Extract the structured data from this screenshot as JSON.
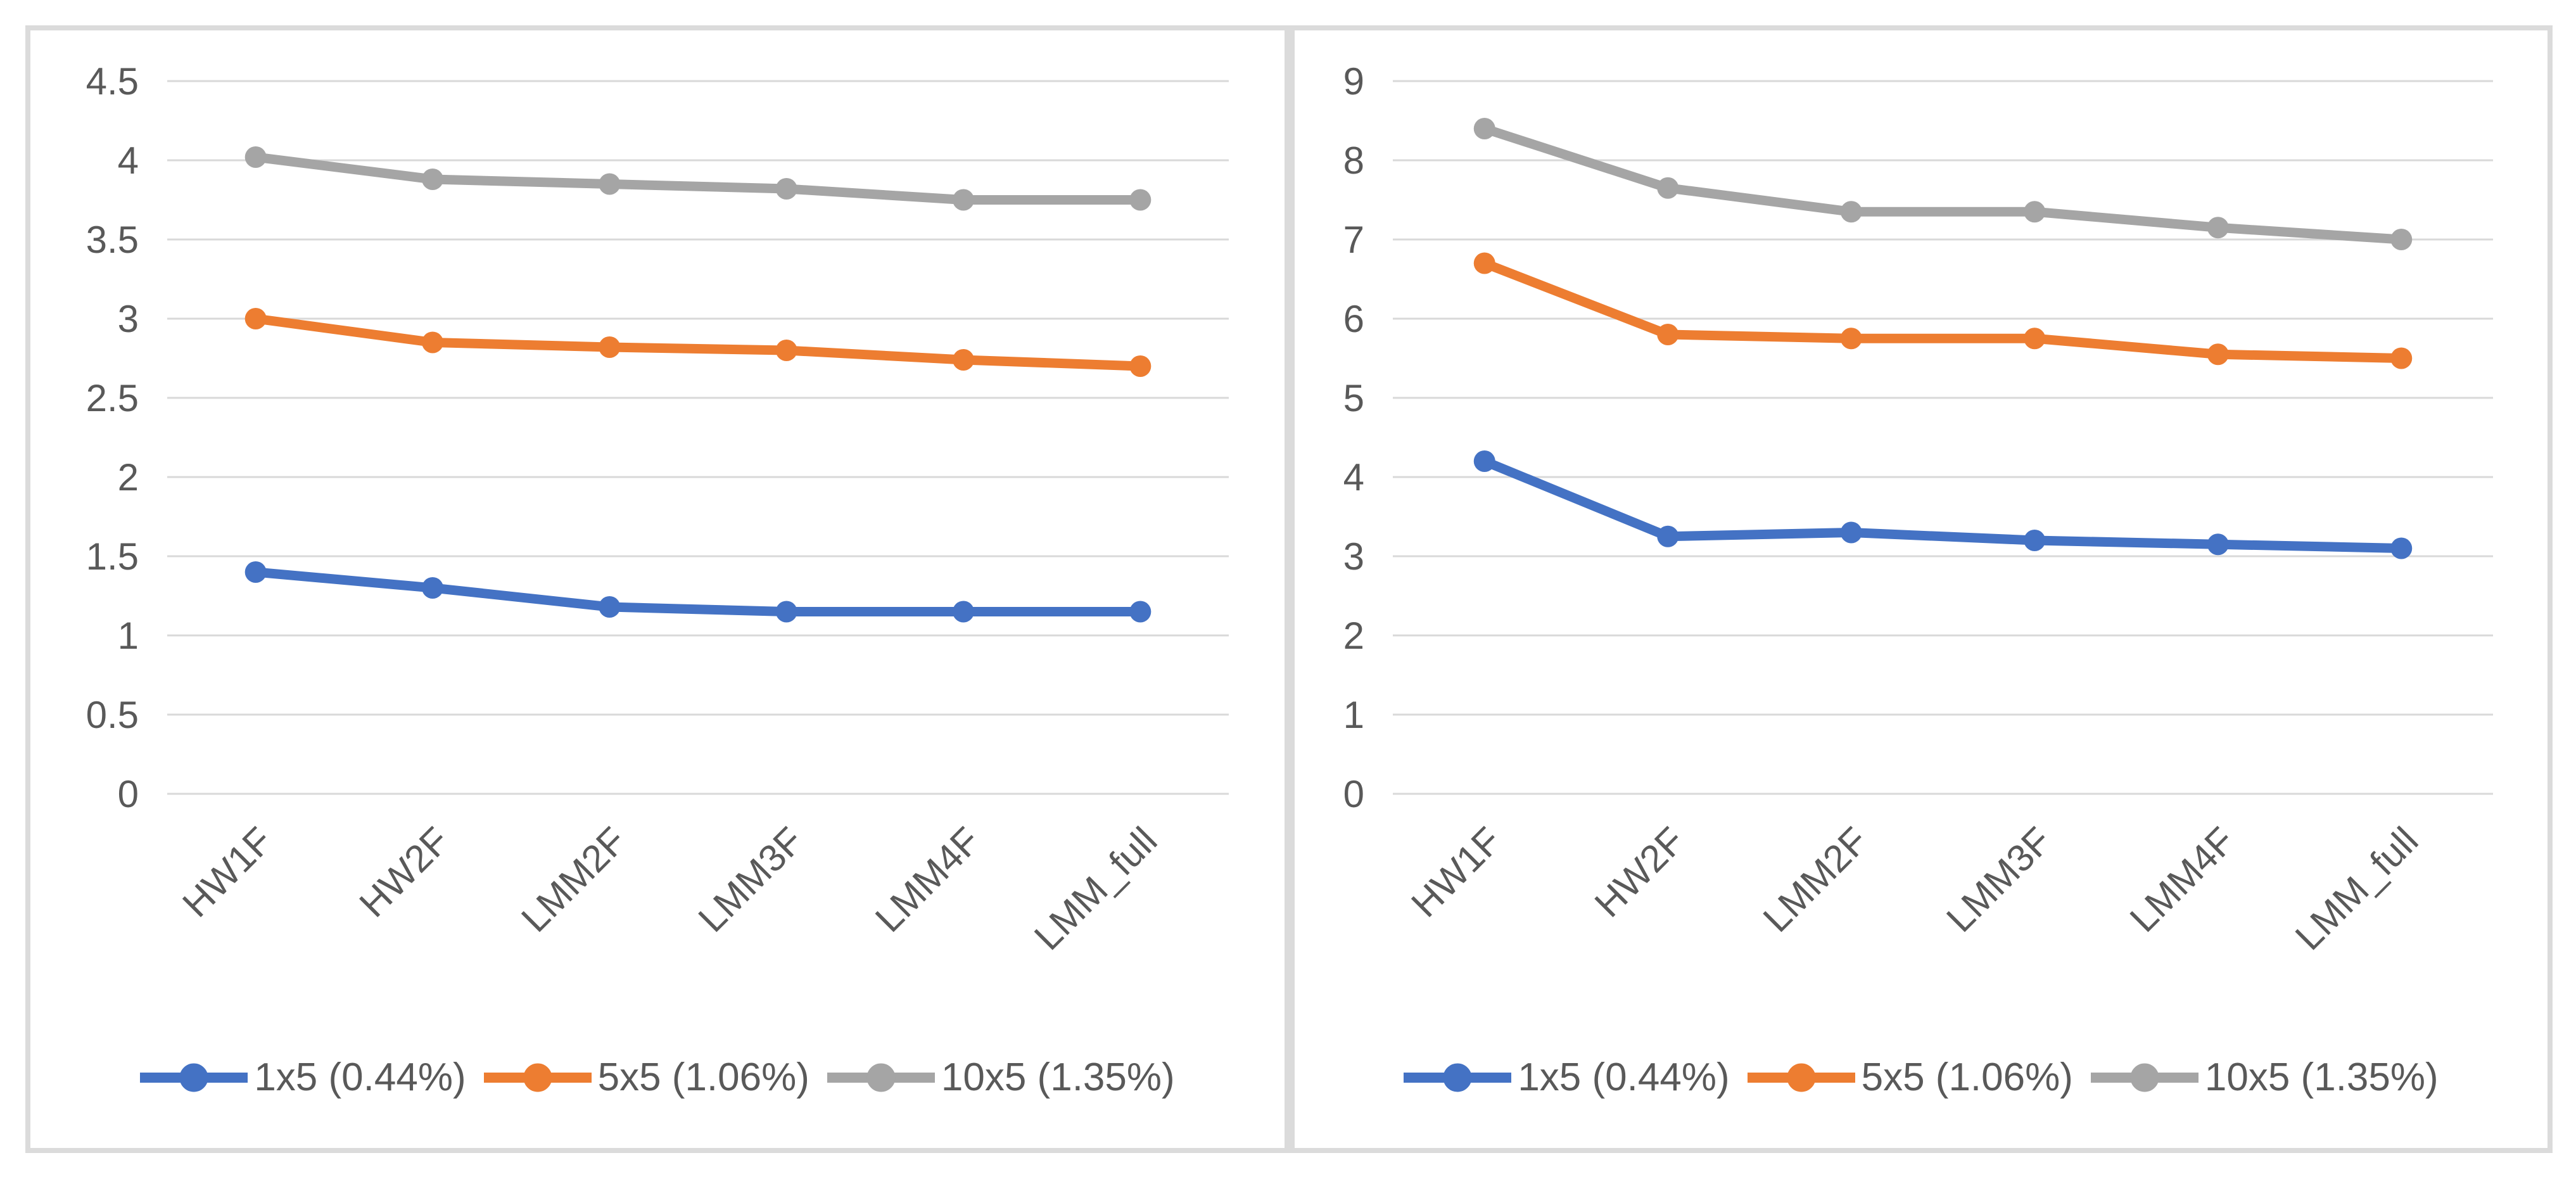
{
  "colors": {
    "series_blue": "#4472C4",
    "series_orange": "#ED7D31",
    "series_gray": "#A5A5A5",
    "gridline": "#D9D9D9",
    "axis_text": "#595959",
    "panel_border": "#DBDBDB",
    "background": "#FFFFFF"
  },
  "legend": {
    "items": [
      {
        "label": "1x5 (0.44%)"
      },
      {
        "label": "5x5 (1.06%)"
      },
      {
        "label": "10x5 (1.35%)"
      }
    ]
  },
  "chart_data": [
    {
      "type": "line",
      "title": "",
      "xlabel": "",
      "ylabel": "",
      "categories": [
        "HW1F",
        "HW2F",
        "LMM2F",
        "LMM3F",
        "LMM4F",
        "LMM_full"
      ],
      "ylim": [
        0,
        4.5
      ],
      "ytick_step": 0.5,
      "grid": true,
      "legend_position": "bottom",
      "series": [
        {
          "name": "1x5 (0.44%)",
          "color": "#4472C4",
          "values": [
            1.4,
            1.3,
            1.18,
            1.15,
            1.15,
            1.15
          ]
        },
        {
          "name": "5x5 (1.06%)",
          "color": "#ED7D31",
          "values": [
            3.0,
            2.85,
            2.82,
            2.8,
            2.74,
            2.7
          ]
        },
        {
          "name": "10x5 (1.35%)",
          "color": "#A5A5A5",
          "values": [
            4.02,
            3.88,
            3.85,
            3.82,
            3.75,
            3.75
          ]
        }
      ]
    },
    {
      "type": "line",
      "title": "",
      "xlabel": "",
      "ylabel": "",
      "categories": [
        "HW1F",
        "HW2F",
        "LMM2F",
        "LMM3F",
        "LMM4F",
        "LMM_full"
      ],
      "ylim": [
        0,
        9
      ],
      "ytick_step": 1,
      "grid": true,
      "legend_position": "bottom",
      "series": [
        {
          "name": "1x5 (0.44%)",
          "color": "#4472C4",
          "values": [
            4.2,
            3.25,
            3.3,
            3.2,
            3.15,
            3.1
          ]
        },
        {
          "name": "5x5 (1.06%)",
          "color": "#ED7D31",
          "values": [
            6.7,
            5.8,
            5.75,
            5.75,
            5.55,
            5.5
          ]
        },
        {
          "name": "10x5 (1.35%)",
          "color": "#A5A5A5",
          "values": [
            8.4,
            7.65,
            7.35,
            7.35,
            7.15,
            7.0
          ]
        }
      ]
    }
  ]
}
